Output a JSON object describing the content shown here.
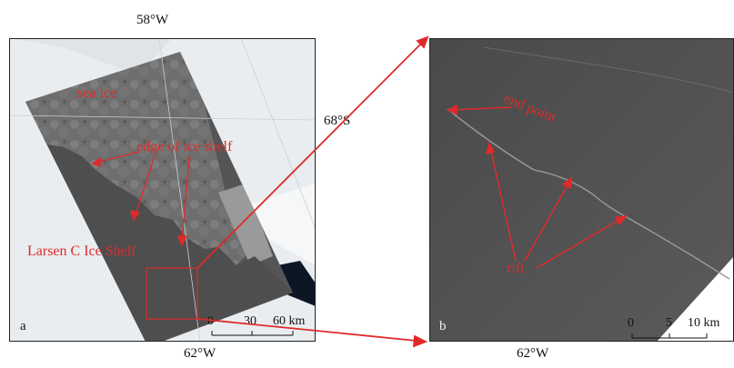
{
  "panel_a": {
    "letter": "a",
    "top_longitude": "58°W",
    "bottom_longitude": "62°W",
    "right_latitude": "68°S",
    "annotations": {
      "sea_ice": "sea ice",
      "edge_of_ice_shelf": "edge of ice shelf",
      "ice_shelf_name": "Larsen C Ice Shelf"
    },
    "scale_bar": {
      "tick_0": "0",
      "tick_1": "30",
      "tick_2": "60 km"
    }
  },
  "panel_b": {
    "letter": "b",
    "bottom_longitude": "62°W",
    "annotations": {
      "end_point": "end point",
      "rift": "rift"
    },
    "scale_bar": {
      "tick_0": "0",
      "tick_1": "5",
      "tick_2": "10 km"
    }
  },
  "colors": {
    "annotation": "#e02a2a",
    "sar_gray": "#5a5a5a",
    "ice_white": "#eef1f3",
    "ocean_dark": "#0c1a2a"
  }
}
